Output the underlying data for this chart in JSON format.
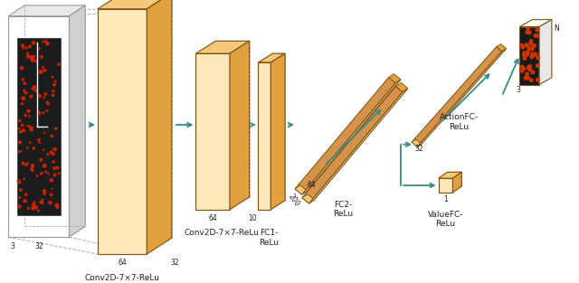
{
  "bg_color": "#ffffff",
  "arrow_color": "#3a8a8a",
  "face_light": "#fce8b8",
  "face_mid": "#f5c87a",
  "face_dark": "#e0a040",
  "face_darker": "#c88828",
  "edge_color": "#7a5010",
  "bar_face": "#d4924a",
  "bar_top": "#e8b870",
  "bar_edge": "#7a5010",
  "dashed_color": "#aaaaaa",
  "text_color": "#222222",
  "labels": {
    "conv1_bottom": "Conv2D-7×7-ReLu",
    "conv2_label": "Conv2D-7×7-ReLu",
    "fc1": "FC1-\nReLu",
    "fc2": "FC2-\nReLu",
    "action_fc": "ActionFC-\nReLu",
    "value_fc": "ValueFC-\nReLu"
  },
  "dims": {
    "input_3": "3",
    "input_32": "32",
    "conv1_64": "64",
    "conv1_32": "32",
    "conv2_64": "64",
    "conv2_10": "10",
    "fc1_200": "200",
    "fc2_64": "64",
    "act_32": "32",
    "out_3": "3",
    "out_n": "N",
    "val_1": "1"
  }
}
